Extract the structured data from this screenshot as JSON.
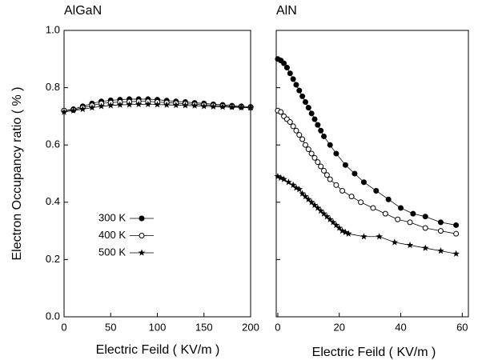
{
  "chart_data": [
    {
      "type": "line",
      "title": "AlGaN",
      "xlabel": "Electric Feild ( KV/m )",
      "ylabel": "Electron Occupancy ratio ( % )",
      "xlim": [
        0,
        200
      ],
      "xticks": [
        0,
        50,
        100,
        150,
        200
      ],
      "ylim": [
        0,
        1
      ],
      "yticks": [
        {
          "value": 0,
          "label": "0.0"
        },
        0.2,
        0.4,
        0.6,
        0.8,
        {
          "value": 1,
          "label": "1.0"
        }
      ],
      "series": [
        {
          "name": "300 K",
          "color": "#000000",
          "marker": "filled-circle",
          "x": [
            0,
            10,
            20,
            30,
            40,
            50,
            60,
            70,
            80,
            90,
            100,
            110,
            120,
            130,
            140,
            150,
            160,
            170,
            180,
            190,
            200
          ],
          "values": [
            0.72,
            0.725,
            0.735,
            0.745,
            0.752,
            0.756,
            0.758,
            0.76,
            0.76,
            0.76,
            0.758,
            0.755,
            0.752,
            0.75,
            0.747,
            0.745,
            0.742,
            0.74,
            0.737,
            0.735,
            0.733
          ]
        },
        {
          "name": "400 K",
          "color": "#000000",
          "marker": "open-circle",
          "x": [
            0,
            10,
            20,
            30,
            40,
            50,
            60,
            70,
            80,
            90,
            100,
            110,
            120,
            130,
            140,
            150,
            160,
            170,
            180,
            190,
            200
          ],
          "values": [
            0.72,
            0.722,
            0.73,
            0.738,
            0.745,
            0.748,
            0.75,
            0.751,
            0.752,
            0.752,
            0.75,
            0.748,
            0.746,
            0.744,
            0.742,
            0.74,
            0.738,
            0.736,
            0.734,
            0.732,
            0.73
          ]
        },
        {
          "name": "500 K",
          "color": "#000000",
          "marker": "star",
          "x": [
            0,
            10,
            20,
            30,
            40,
            50,
            60,
            70,
            80,
            90,
            100,
            110,
            120,
            130,
            140,
            150,
            160,
            170,
            180,
            190,
            200
          ],
          "values": [
            0.715,
            0.72,
            0.725,
            0.73,
            0.735,
            0.738,
            0.74,
            0.741,
            0.742,
            0.742,
            0.741,
            0.74,
            0.739,
            0.738,
            0.737,
            0.735,
            0.734,
            0.733,
            0.732,
            0.731,
            0.73
          ]
        }
      ]
    },
    {
      "type": "line",
      "title": "AlN",
      "xlabel": "Electric Feild ( KV/m )",
      "xlim": [
        -0.5,
        62
      ],
      "xticks": [
        0,
        20,
        40,
        60
      ],
      "ylim": [
        0,
        1
      ],
      "yticks": [
        0,
        0.2,
        0.4,
        0.6,
        0.8,
        1
      ],
      "series": [
        {
          "color": "#000000",
          "marker": "filled-circle",
          "x": [
            0,
            1,
            2,
            3,
            4,
            5,
            6,
            7,
            8,
            9,
            10,
            11,
            12,
            13,
            14,
            15,
            17,
            19,
            22,
            25,
            28,
            32,
            36,
            40,
            44,
            48,
            53,
            58
          ],
          "values": [
            0.9,
            0.895,
            0.885,
            0.87,
            0.85,
            0.83,
            0.81,
            0.79,
            0.77,
            0.75,
            0.73,
            0.71,
            0.69,
            0.67,
            0.65,
            0.63,
            0.6,
            0.57,
            0.53,
            0.5,
            0.47,
            0.44,
            0.41,
            0.38,
            0.36,
            0.35,
            0.33,
            0.32
          ]
        },
        {
          "color": "#000000",
          "marker": "open-circle",
          "x": [
            0,
            1,
            2,
            3,
            4,
            5,
            6,
            7,
            8,
            9,
            10,
            11,
            12,
            13,
            14,
            15,
            16,
            17,
            19,
            21,
            24,
            27,
            31,
            35,
            39,
            43,
            48,
            53,
            58
          ],
          "values": [
            0.72,
            0.715,
            0.7,
            0.69,
            0.68,
            0.665,
            0.65,
            0.635,
            0.62,
            0.6,
            0.585,
            0.57,
            0.555,
            0.54,
            0.525,
            0.51,
            0.495,
            0.48,
            0.46,
            0.44,
            0.42,
            0.4,
            0.38,
            0.36,
            0.34,
            0.33,
            0.31,
            0.3,
            0.29
          ]
        },
        {
          "color": "#000000",
          "marker": "star",
          "x": [
            0,
            1,
            2,
            3.5,
            5,
            6,
            7,
            8,
            9,
            10,
            11,
            12,
            13,
            14,
            15,
            16,
            17,
            18,
            19,
            20,
            21,
            22,
            23,
            28,
            33,
            38,
            43,
            48,
            53,
            58
          ],
          "values": [
            0.49,
            0.485,
            0.48,
            0.47,
            0.46,
            0.45,
            0.445,
            0.43,
            0.42,
            0.41,
            0.4,
            0.39,
            0.38,
            0.37,
            0.36,
            0.35,
            0.34,
            0.33,
            0.32,
            0.31,
            0.3,
            0.295,
            0.29,
            0.28,
            0.28,
            0.26,
            0.25,
            0.24,
            0.23,
            0.22
          ]
        }
      ]
    }
  ]
}
